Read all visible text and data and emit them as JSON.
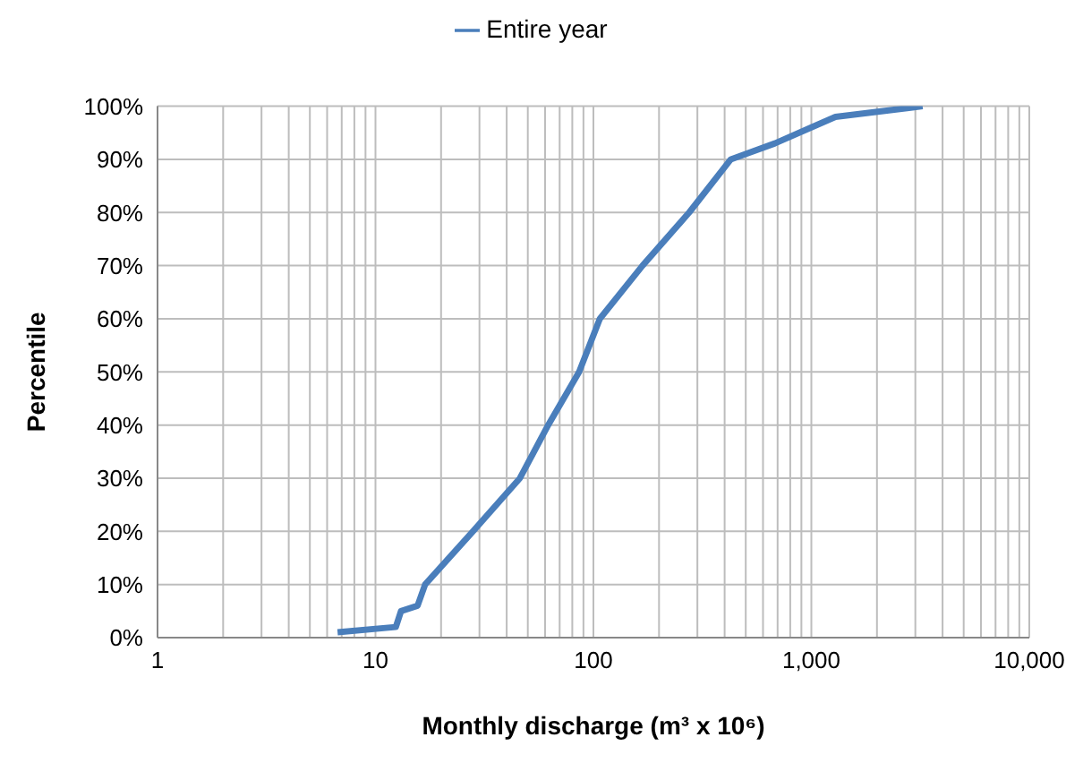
{
  "chart_data": {
    "type": "line",
    "xlabel": "Monthly discharge (m³ x 10⁶)",
    "ylabel": "Percentile",
    "log": "x",
    "grid": true,
    "legend": "top",
    "marker": "none",
    "line_style": "solid",
    "x": [
      6.7,
      12.4,
      13.1,
      15.6,
      16.9,
      28,
      46,
      62,
      86,
      107,
      168,
      275,
      427,
      680,
      1000,
      1290,
      3240
    ],
    "series": [
      {
        "name": "Entire year",
        "color": "#4a7ebb",
        "values": [
          1,
          2,
          5,
          6,
          10,
          20,
          30,
          40,
          50,
          60,
          70,
          80,
          90,
          93,
          96,
          98,
          100
        ]
      }
    ],
    "xlim": [
      1,
      10000
    ],
    "xticks": [
      1,
      {
        "value": 2,
        "label": null
      },
      {
        "value": 3,
        "label": null
      },
      {
        "value": 4,
        "label": null
      },
      {
        "value": 5,
        "label": null
      },
      {
        "value": 6,
        "label": null
      },
      {
        "value": 7,
        "label": null
      },
      {
        "value": 8,
        "label": null
      },
      {
        "value": 9,
        "label": null
      },
      10,
      {
        "value": 20,
        "label": null
      },
      {
        "value": 30,
        "label": null
      },
      {
        "value": 40,
        "label": null
      },
      {
        "value": 50,
        "label": null
      },
      {
        "value": 60,
        "label": null
      },
      {
        "value": 70,
        "label": null
      },
      {
        "value": 80,
        "label": null
      },
      {
        "value": 90,
        "label": null
      },
      100,
      {
        "value": 200,
        "label": null
      },
      {
        "value": 300,
        "label": null
      },
      {
        "value": 400,
        "label": null
      },
      {
        "value": 500,
        "label": null
      },
      {
        "value": 600,
        "label": null
      },
      {
        "value": 700,
        "label": null
      },
      {
        "value": 800,
        "label": null
      },
      {
        "value": 900,
        "label": null
      },
      {
        "value": 1000,
        "label": "1,000"
      },
      {
        "value": 2000,
        "label": null
      },
      {
        "value": 3000,
        "label": null
      },
      {
        "value": 4000,
        "label": null
      },
      {
        "value": 5000,
        "label": null
      },
      {
        "value": 6000,
        "label": null
      },
      {
        "value": 7000,
        "label": null
      },
      {
        "value": 8000,
        "label": null
      },
      {
        "value": 9000,
        "label": null
      },
      {
        "value": 10000,
        "label": "10,000"
      }
    ],
    "ylim": [
      0,
      100
    ],
    "yticks": [
      {
        "value": 0,
        "label": "0%"
      },
      {
        "value": 10,
        "label": "10%"
      },
      {
        "value": 20,
        "label": "20%"
      },
      {
        "value": 30,
        "label": "30%"
      },
      {
        "value": 40,
        "label": "40%"
      },
      {
        "value": 50,
        "label": "50%"
      },
      {
        "value": 60,
        "label": "60%"
      },
      {
        "value": 70,
        "label": "70%"
      },
      {
        "value": 80,
        "label": "80%"
      },
      {
        "value": 90,
        "label": "90%"
      },
      {
        "value": 100,
        "label": "100%"
      }
    ]
  }
}
